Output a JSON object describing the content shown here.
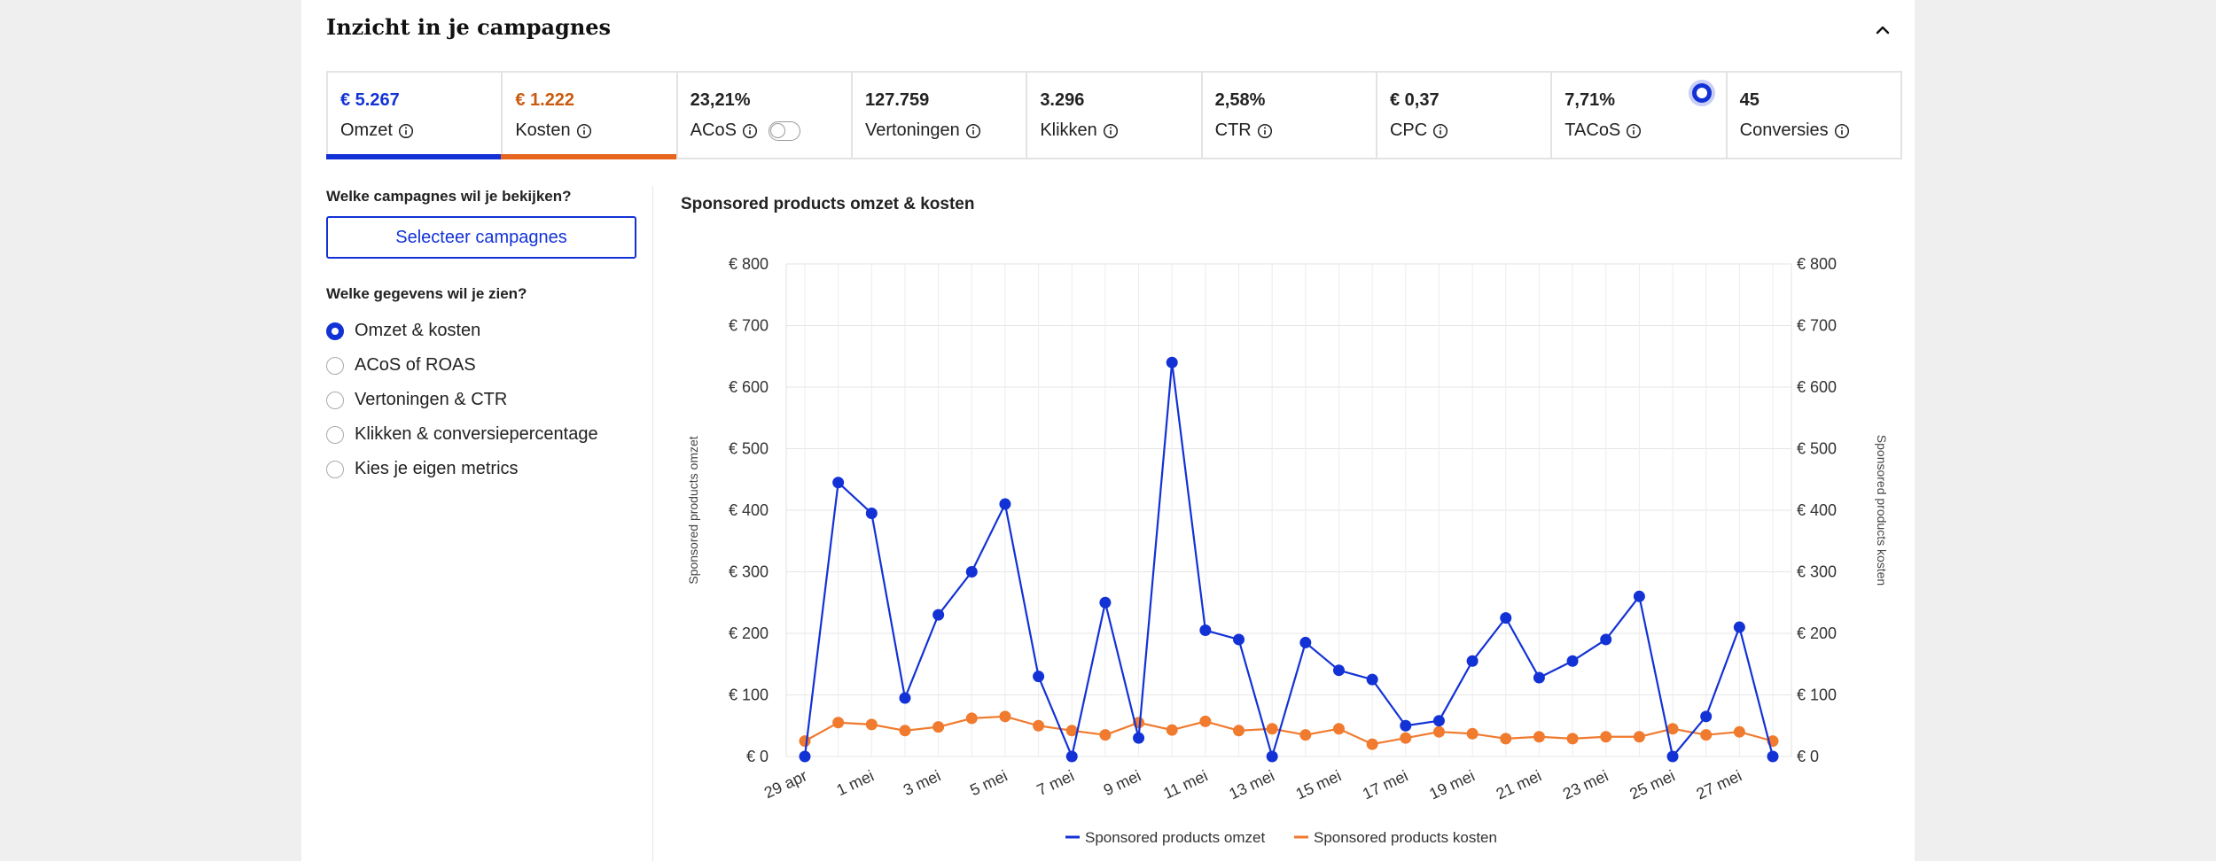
{
  "header": {
    "title": "Inzicht in je campagnes"
  },
  "tiles": [
    {
      "value": "€ 5.267",
      "label": "Omzet",
      "style": "blue"
    },
    {
      "value": "€ 1.222",
      "label": "Kosten",
      "style": "orange"
    },
    {
      "value": "23,21%",
      "label": "ACoS",
      "style": "toggle"
    },
    {
      "value": "127.759",
      "label": "Vertoningen",
      "style": ""
    },
    {
      "value": "3.296",
      "label": "Klikken",
      "style": ""
    },
    {
      "value": "2,58%",
      "label": "CTR",
      "style": ""
    },
    {
      "value": "€ 0,37",
      "label": "CPC",
      "style": ""
    },
    {
      "value": "7,71%",
      "label": "TACoS",
      "style": "dot"
    },
    {
      "value": "45",
      "label": "Conversies",
      "style": ""
    }
  ],
  "sidebar": {
    "campaigns_question": "Welke campagnes wil je bekijken?",
    "select_button": "Selecteer campagnes",
    "data_question": "Welke gegevens wil je zien?",
    "options": [
      {
        "label": "Omzet & kosten",
        "checked": true
      },
      {
        "label": "ACoS of ROAS",
        "checked": false
      },
      {
        "label": "Vertoningen & CTR",
        "checked": false
      },
      {
        "label": "Klikken & conversiepercentage",
        "checked": false
      },
      {
        "label": "Kies je eigen metrics",
        "checked": false
      }
    ]
  },
  "chart_data": {
    "type": "line",
    "title": "Sponsored products omzet & kosten",
    "ylabel_left": "Sponsored products omzet",
    "ylabel_right": "Sponsored products kosten",
    "ylim": [
      0,
      800
    ],
    "yticks": [
      "€ 0",
      "€ 100",
      "€ 200",
      "€ 300",
      "€ 400",
      "€ 500",
      "€ 600",
      "€ 700",
      "€ 800"
    ],
    "ytick_values": [
      0,
      100,
      200,
      300,
      400,
      500,
      600,
      700,
      800
    ],
    "xtick_labels": [
      "29 apr",
      "1 mei",
      "3 mei",
      "5 mei",
      "7 mei",
      "9 mei",
      "11 mei",
      "13 mei",
      "15 mei",
      "17 mei",
      "19 mei",
      "21 mei",
      "23 mei",
      "25 mei",
      "27 mei"
    ],
    "x": [
      "29 apr",
      "30 apr",
      "1 mei",
      "2 mei",
      "3 mei",
      "4 mei",
      "5 mei",
      "6 mei",
      "7 mei",
      "8 mei",
      "9 mei",
      "10 mei",
      "11 mei",
      "12 mei",
      "13 mei",
      "14 mei",
      "15 mei",
      "16 mei",
      "17 mei",
      "18 mei",
      "19 mei",
      "20 mei",
      "21 mei",
      "22 mei",
      "23 mei",
      "24 mei",
      "25 mei",
      "26 mei",
      "27 mei",
      "28 mei"
    ],
    "series": [
      {
        "name": "Sponsored products omzet",
        "color": "#1332d6",
        "values": [
          0,
          445,
          395,
          95,
          230,
          300,
          410,
          130,
          0,
          250,
          30,
          640,
          205,
          190,
          0,
          185,
          140,
          125,
          50,
          58,
          155,
          225,
          128,
          155,
          190,
          260,
          0,
          65,
          210,
          0
        ]
      },
      {
        "name": "Sponsored products kosten",
        "color": "#f07a2e",
        "values": [
          25,
          55,
          52,
          42,
          48,
          62,
          65,
          50,
          42,
          35,
          55,
          43,
          57,
          42,
          45,
          35,
          45,
          20,
          30,
          40,
          37,
          29,
          32,
          29,
          32,
          32,
          45,
          35,
          40,
          25
        ]
      }
    ],
    "legend": "bottom"
  }
}
